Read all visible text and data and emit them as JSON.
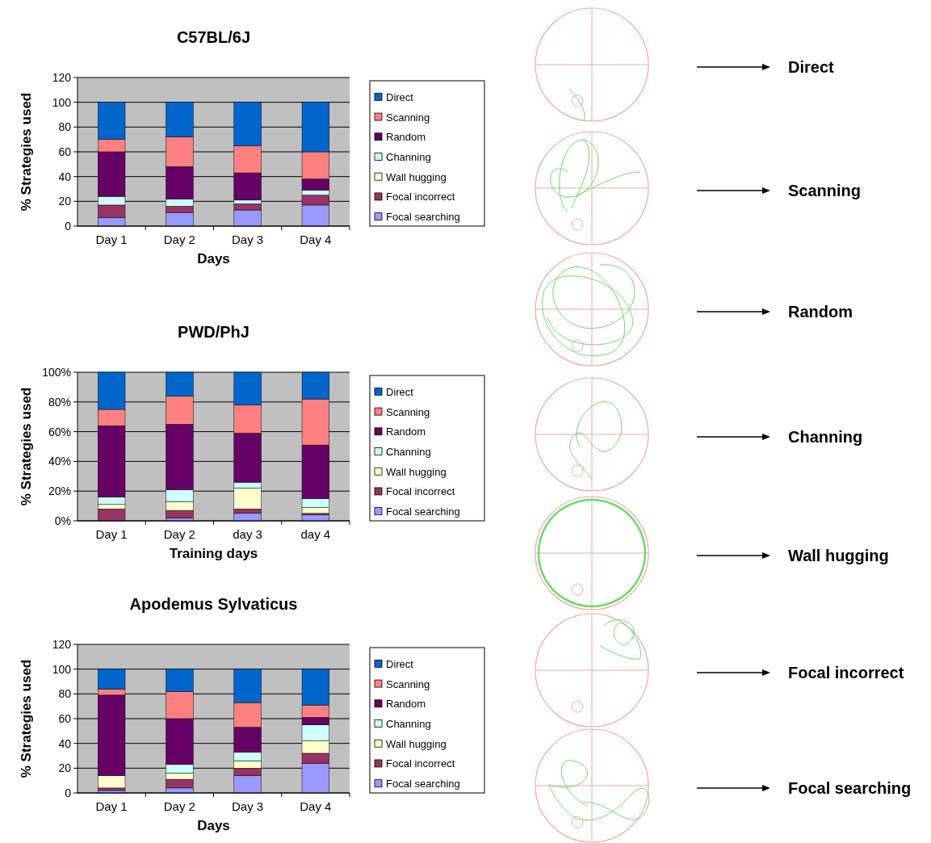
{
  "chart_data": [
    {
      "type": "bar",
      "stacked": true,
      "title": "C57BL/6J",
      "xlabel": "Days",
      "ylabel": "% Strategies used",
      "categories": [
        "Day 1",
        "Day 2",
        "Day 3",
        "Day 4"
      ],
      "ylim": [
        0,
        120
      ],
      "yticks": [
        0,
        20,
        40,
        60,
        80,
        100,
        120
      ],
      "grid": "y",
      "legend": "right",
      "series": [
        {
          "name": "Focal searching",
          "color": "#9999ff",
          "values": [
            7,
            11,
            13,
            17
          ]
        },
        {
          "name": "Focal incorrect",
          "color": "#993366",
          "values": [
            10,
            5,
            5,
            8
          ]
        },
        {
          "name": "Wall hugging",
          "color": "#ffffcc",
          "values": [
            0,
            0,
            0,
            0
          ]
        },
        {
          "name": "Channing",
          "color": "#ccffff",
          "values": [
            7,
            6,
            3,
            4
          ]
        },
        {
          "name": "Random",
          "color": "#660066",
          "values": [
            36,
            26,
            22,
            9
          ]
        },
        {
          "name": "Scanning",
          "color": "#ff8080",
          "values": [
            10,
            24,
            22,
            22
          ]
        },
        {
          "name": "Direct",
          "color": "#0066cc",
          "values": [
            30,
            28,
            35,
            40
          ]
        }
      ]
    },
    {
      "type": "bar",
      "stacked": true,
      "title": "PWD/PhJ",
      "xlabel": "Training days",
      "ylabel": "% Strategies used",
      "categories": [
        "Day 1",
        "Day 2",
        "day 3",
        "day 4"
      ],
      "ylim": [
        0,
        100
      ],
      "yticks": [
        {
          "value": 0,
          "label": "0%"
        },
        {
          "value": 20,
          "label": "20%"
        },
        {
          "value": 40,
          "label": "40%"
        },
        {
          "value": 60,
          "label": "60%"
        },
        {
          "value": 80,
          "label": "80%"
        },
        {
          "value": 100,
          "label": "100%"
        }
      ],
      "grid": "y",
      "legend": "right",
      "series": [
        {
          "name": "Focal searching",
          "color": "#9999ff",
          "values": [
            0,
            2,
            5,
            4
          ]
        },
        {
          "name": "Focal incorrect",
          "color": "#993366",
          "values": [
            8,
            5,
            3,
            1
          ]
        },
        {
          "name": "Wall hugging",
          "color": "#ffffcc",
          "values": [
            3,
            6,
            14,
            4
          ]
        },
        {
          "name": "Channing",
          "color": "#ccffff",
          "values": [
            5,
            8,
            4,
            6
          ]
        },
        {
          "name": "Random",
          "color": "#660066",
          "values": [
            48,
            44,
            33,
            36
          ]
        },
        {
          "name": "Scanning",
          "color": "#ff8080",
          "values": [
            11,
            19,
            19,
            31
          ]
        },
        {
          "name": "Direct",
          "color": "#0066cc",
          "values": [
            25,
            16,
            22,
            18
          ]
        }
      ]
    },
    {
      "type": "bar",
      "stacked": true,
      "title": "Apodemus Sylvaticus",
      "xlabel": "Days",
      "ylabel": "% Strategies used",
      "categories": [
        "Day 1",
        "Day 2",
        "Day 3",
        "Day 4"
      ],
      "ylim": [
        0,
        120
      ],
      "yticks": [
        0,
        20,
        40,
        60,
        80,
        100,
        120
      ],
      "grid": "y",
      "legend": "right",
      "series": [
        {
          "name": "Focal searching",
          "color": "#9999ff",
          "values": [
            2,
            4,
            14,
            24
          ]
        },
        {
          "name": "Focal incorrect",
          "color": "#993366",
          "values": [
            2,
            7,
            6,
            8
          ]
        },
        {
          "name": "Wall hugging",
          "color": "#ffffcc",
          "values": [
            10,
            5,
            6,
            10
          ]
        },
        {
          "name": "Channing",
          "color": "#ccffff",
          "values": [
            0,
            7,
            7,
            13
          ]
        },
        {
          "name": "Random",
          "color": "#660066",
          "values": [
            65,
            37,
            20,
            6
          ]
        },
        {
          "name": "Scanning",
          "color": "#ff8080",
          "values": [
            5,
            22,
            20,
            10
          ]
        },
        {
          "name": "Direct",
          "color": "#0066cc",
          "values": [
            16,
            18,
            27,
            29
          ]
        }
      ]
    },
    {
      "type": "other",
      "annotations": [
        "Direct",
        "Scanning",
        "Random",
        "Channing",
        "Wall hugging",
        "Focal incorrect",
        "Focal searching"
      ]
    }
  ]
}
